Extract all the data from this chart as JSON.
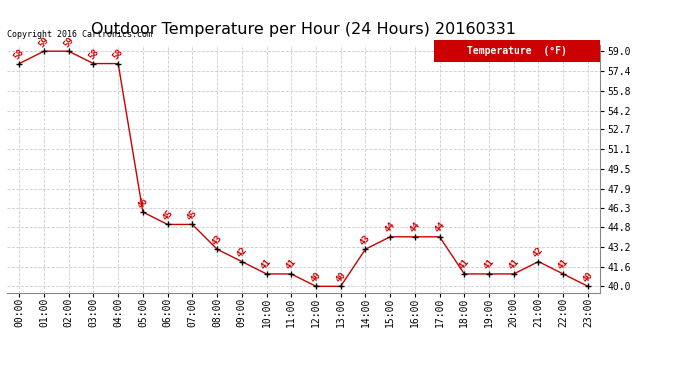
{
  "title": "Outdoor Temperature per Hour (24 Hours) 20160331",
  "hours": [
    "00:00",
    "01:00",
    "02:00",
    "03:00",
    "04:00",
    "05:00",
    "06:00",
    "07:00",
    "08:00",
    "09:00",
    "10:00",
    "11:00",
    "12:00",
    "13:00",
    "14:00",
    "15:00",
    "16:00",
    "17:00",
    "18:00",
    "19:00",
    "20:00",
    "21:00",
    "22:00",
    "23:00"
  ],
  "temps": [
    58,
    59,
    59,
    58,
    58,
    46,
    45,
    45,
    43,
    42,
    41,
    41,
    40,
    40,
    43,
    44,
    44,
    44,
    41,
    41,
    41,
    42,
    41,
    40
  ],
  "ylim": [
    39.5,
    59.5
  ],
  "yticks": [
    40.0,
    41.6,
    43.2,
    44.8,
    46.3,
    47.9,
    49.5,
    51.1,
    52.7,
    54.2,
    55.8,
    57.4,
    59.0
  ],
  "line_color": "#cc0000",
  "marker_color": "#000000",
  "label_color": "#cc0000",
  "legend_text": "Temperature  (°F)",
  "legend_bg": "#cc0000",
  "legend_fg": "#ffffff",
  "copyright_text": "Copyright 2016 Cartronics.com",
  "bg_color": "#ffffff",
  "grid_color": "#cccccc",
  "title_fontsize": 11.5,
  "label_fontsize": 6.5,
  "tick_fontsize": 7.0,
  "copyright_fontsize": 6.0
}
